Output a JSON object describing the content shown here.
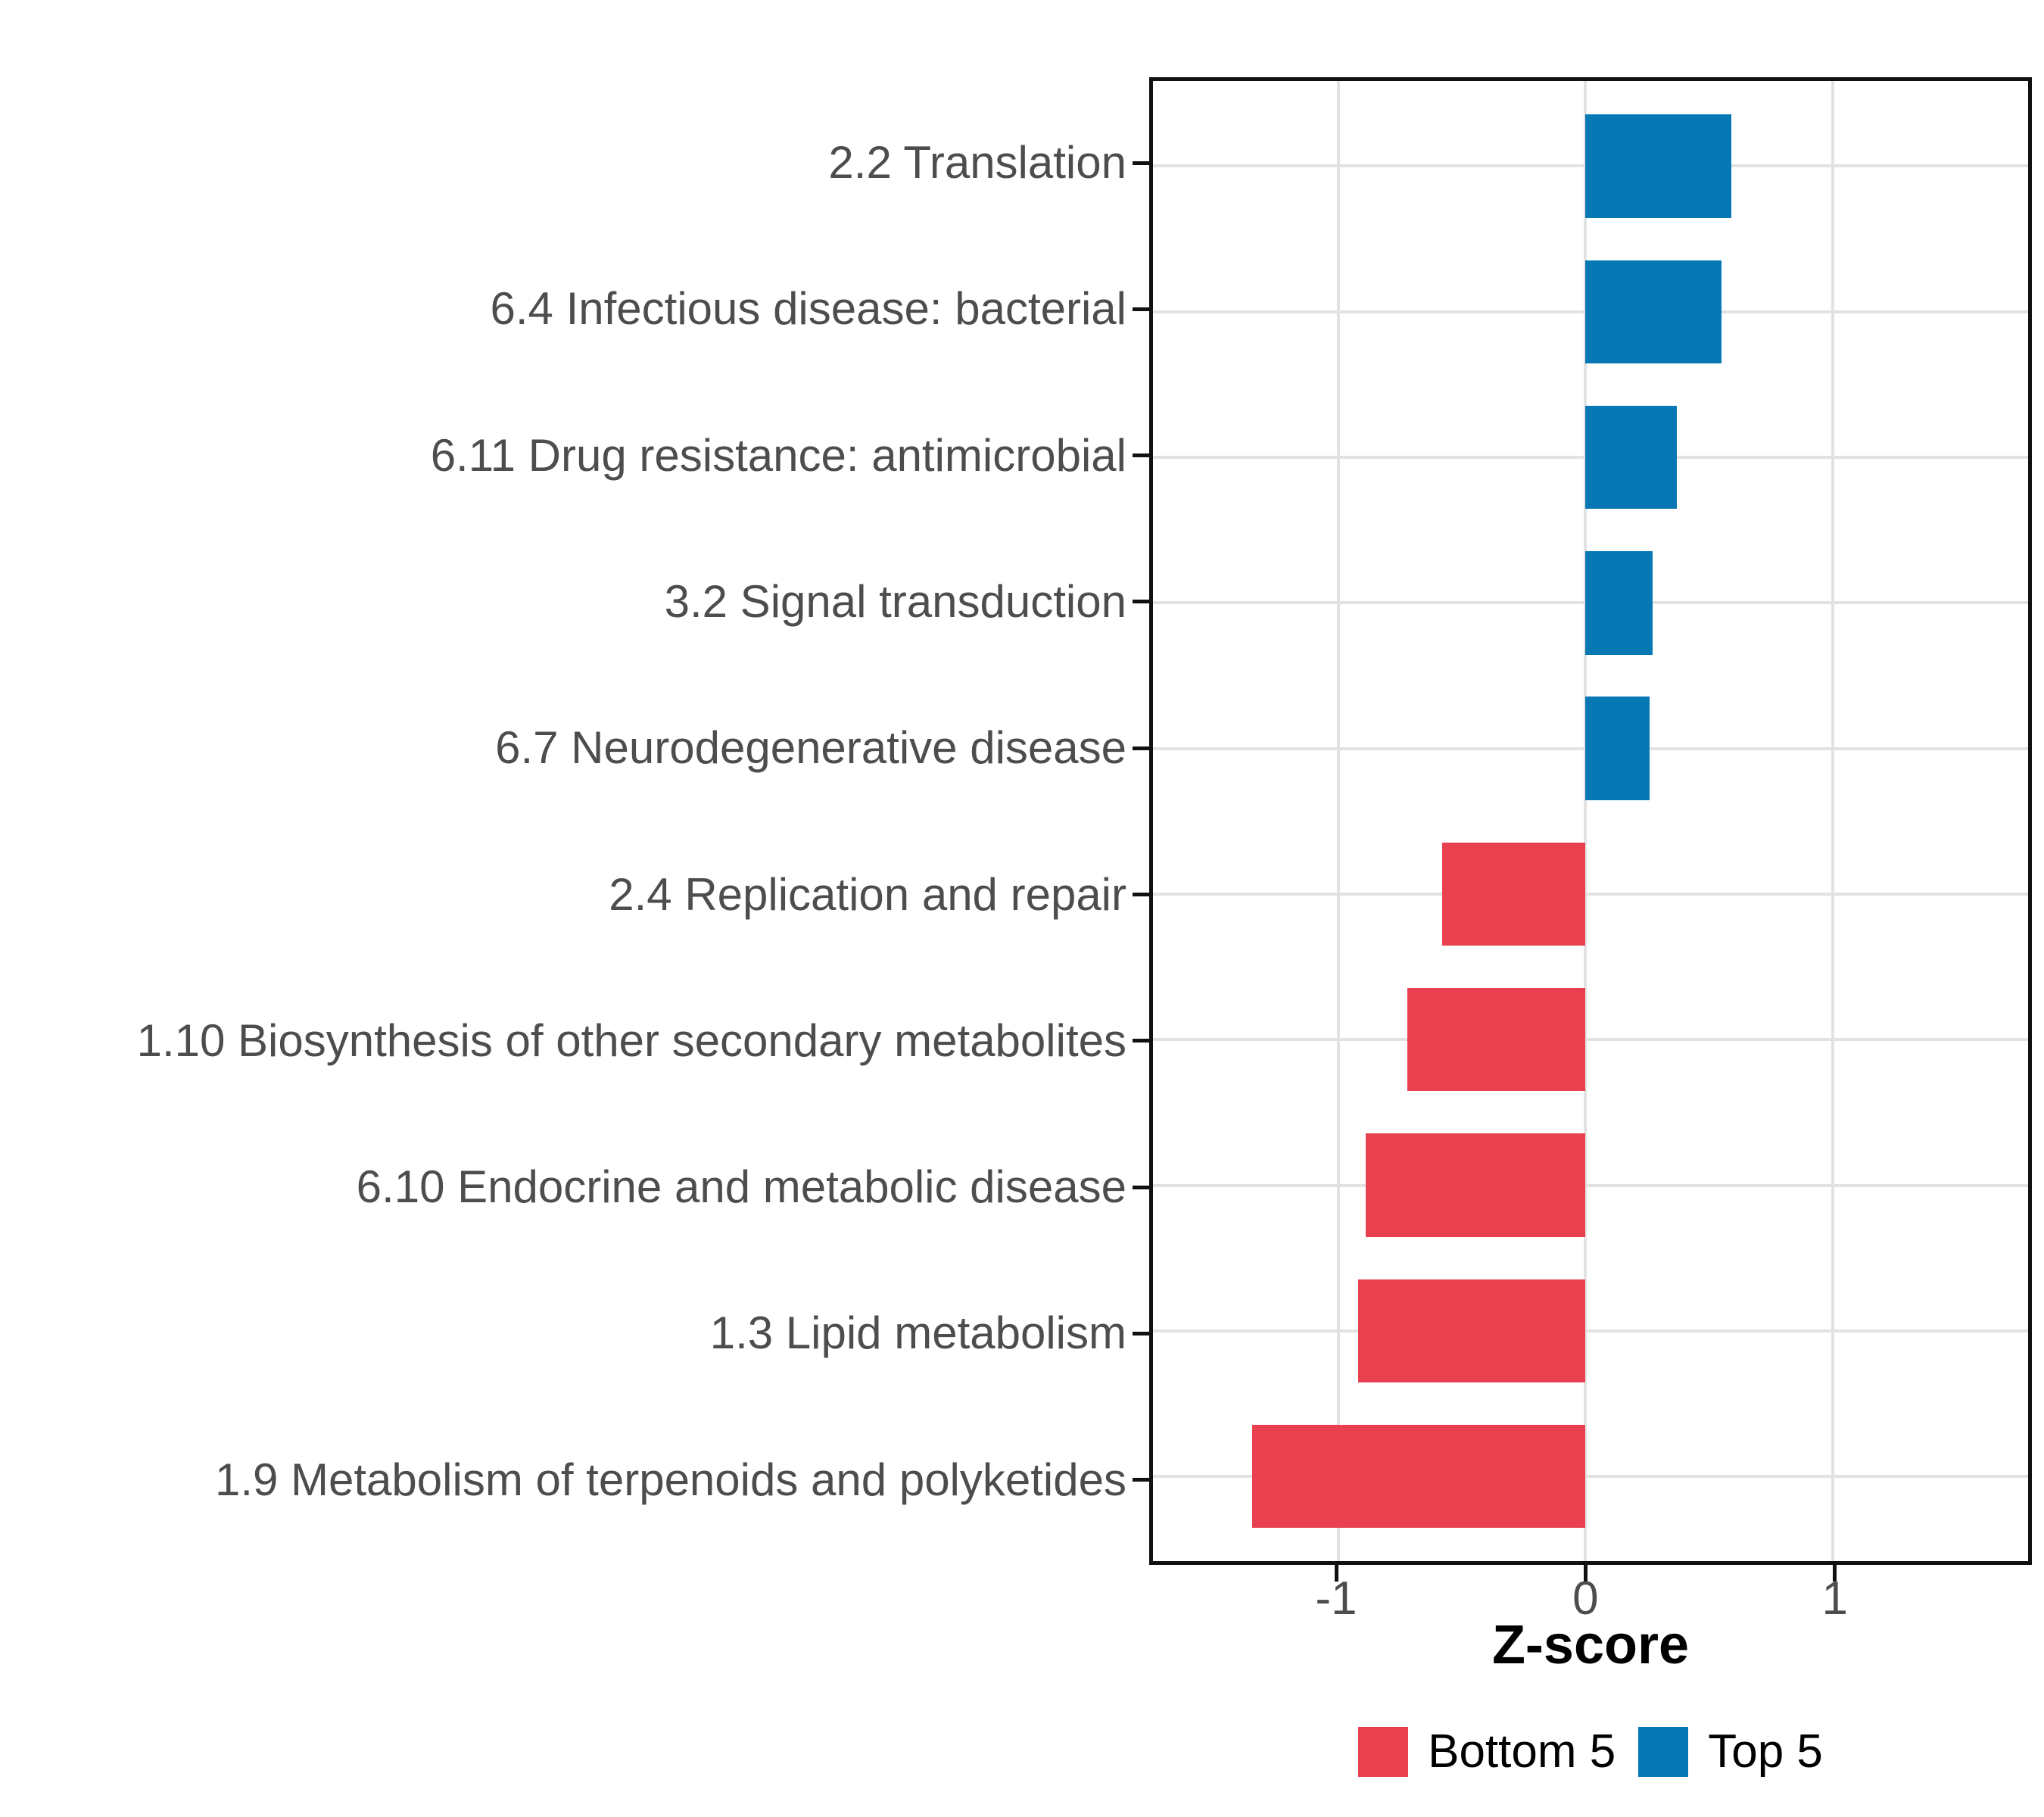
{
  "chart_data": {
    "type": "bar",
    "orientation": "horizontal",
    "title": "",
    "xlabel": "Z-score",
    "ylabel": "",
    "categories": [
      "2.2 Translation",
      "6.4 Infectious disease: bacterial",
      "6.11 Drug resistance: antimicrobial",
      "3.2 Signal transduction",
      "6.7 Neurodegenerative disease",
      "2.4 Replication and repair",
      "1.10 Biosynthesis of other secondary metabolites",
      "6.10 Endocrine and metabolic disease",
      "1.3 Lipid metabolism",
      "1.9 Metabolism of terpenoids and polyketides"
    ],
    "values": [
      0.59,
      0.55,
      0.37,
      0.27,
      0.26,
      -0.58,
      -0.72,
      -0.89,
      -0.92,
      -1.35
    ],
    "groups": [
      "Top 5",
      "Top 5",
      "Top 5",
      "Top 5",
      "Top 5",
      "Bottom 5",
      "Bottom 5",
      "Bottom 5",
      "Bottom 5",
      "Bottom 5"
    ],
    "series_colors": {
      "Bottom 5": "#e8404e",
      "Top 5": "#0878b4"
    },
    "x_ticks": [
      -1,
      0,
      1
    ],
    "x_tick_labels": [
      "-1",
      "0",
      "1"
    ],
    "xlim": [
      -1.75,
      1.79
    ],
    "grid": true,
    "grid_color": "#e2e2e2",
    "legend_position": "bottom"
  },
  "legend": {
    "items": [
      {
        "label": "Bottom 5",
        "color": "#e8404e"
      },
      {
        "label": "Top 5",
        "color": "#0878b4"
      }
    ]
  }
}
